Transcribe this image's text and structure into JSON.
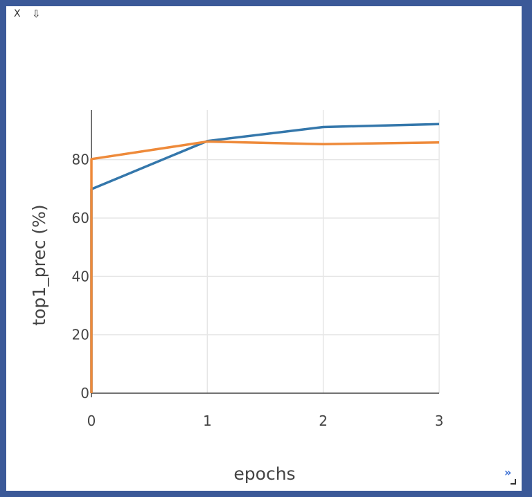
{
  "window": {
    "close_label": "X",
    "download_icon": "download-arrow-icon",
    "expand_label": "»"
  },
  "chart_data": {
    "type": "line",
    "xlabel": "epochs",
    "ylabel": "top1_prec (%)",
    "xlim": [
      0,
      3
    ],
    "ylim": [
      0,
      97
    ],
    "xticks": [
      0,
      1,
      2,
      3
    ],
    "yticks": [
      0,
      20,
      40,
      60,
      80
    ],
    "grid": true,
    "series": [
      {
        "color": "#3477ab",
        "x": [
          0,
          0,
          1,
          2,
          3
        ],
        "y": [
          0,
          69.9,
          86.4,
          91.2,
          92.2
        ]
      },
      {
        "color": "#ee8a3a",
        "x": [
          0,
          0,
          1,
          2,
          3
        ],
        "y": [
          0,
          80.2,
          86.2,
          85.3,
          85.9
        ]
      }
    ]
  }
}
